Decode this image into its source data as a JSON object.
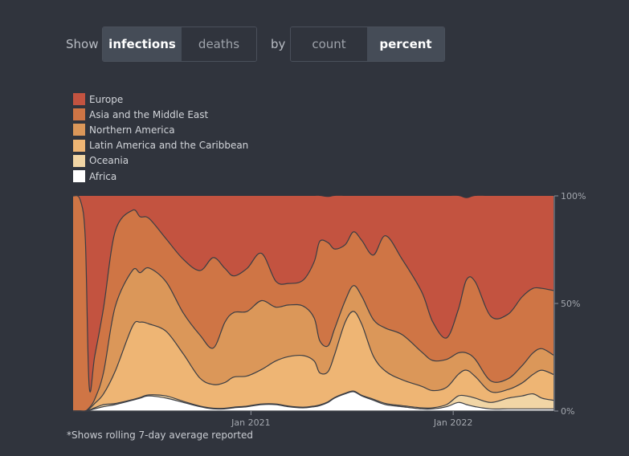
{
  "controls": {
    "show_label": "Show",
    "by_label": "by",
    "metric_options": [
      {
        "label": "infections",
        "active": true
      },
      {
        "label": "deaths",
        "active": false
      }
    ],
    "mode_options": [
      {
        "label": "count",
        "active": false
      },
      {
        "label": "percent",
        "active": true
      }
    ]
  },
  "footnote": "*Shows rolling 7-day average reported",
  "chart_data": {
    "type": "area",
    "stacked": true,
    "normalized": true,
    "x_range": [
      "2020-02-15",
      "2022-07-01"
    ],
    "ylim": [
      0,
      100
    ],
    "y_ticks": [
      "0%",
      "50%",
      "100%"
    ],
    "x_ticks": [
      "Jan 2021",
      "Jan 2022"
    ],
    "legend_position": "top-left",
    "x": [
      "2020-02-15",
      "2020-02-28",
      "2020-03-08",
      "2020-03-15",
      "2020-03-25",
      "2020-04-10",
      "2020-05-01",
      "2020-06-01",
      "2020-06-15",
      "2020-07-01",
      "2020-08-01",
      "2020-09-01",
      "2020-10-01",
      "2020-10-25",
      "2020-11-15",
      "2020-12-01",
      "2020-12-25",
      "2021-01-20",
      "2021-02-15",
      "2021-03-10",
      "2021-04-05",
      "2021-04-25",
      "2021-05-05",
      "2021-05-20",
      "2021-06-01",
      "2021-06-20",
      "2021-07-05",
      "2021-07-20",
      "2021-08-10",
      "2021-09-01",
      "2021-10-01",
      "2021-11-05",
      "2021-11-25",
      "2021-12-20",
      "2022-01-10",
      "2022-01-25",
      "2022-02-10",
      "2022-03-10",
      "2022-04-10",
      "2022-05-05",
      "2022-05-25",
      "2022-06-10",
      "2022-07-01"
    ],
    "series": [
      {
        "name": "Africa",
        "color": "#ffffff",
        "values": [
          0,
          0,
          0,
          0.3,
          1,
          2,
          3,
          5,
          6,
          7,
          6,
          4,
          2,
          1,
          1,
          1.5,
          2,
          3,
          3,
          2,
          1.5,
          2,
          2.5,
          4,
          6,
          8,
          9,
          7,
          5,
          3,
          2,
          1,
          1,
          2,
          4,
          3,
          2,
          1,
          1,
          1,
          1,
          1,
          1
        ]
      },
      {
        "name": "Oceania",
        "color": "#f1d5a5",
        "values": [
          0,
          0,
          0,
          0.2,
          0.5,
          1,
          0.5,
          0.3,
          0.3,
          0.5,
          1,
          0.5,
          0.3,
          0.3,
          0.3,
          0.3,
          0.3,
          0.3,
          0.3,
          0.3,
          0.3,
          0.3,
          0.3,
          0.3,
          0.3,
          0.3,
          0.3,
          0.3,
          0.5,
          0.5,
          0.5,
          0.5,
          0.5,
          1,
          3,
          4,
          4,
          3,
          5,
          6,
          7,
          5,
          4
        ]
      },
      {
        "name": "Latin America and the Caribbean",
        "color": "#eeb574",
        "values": [
          0,
          0,
          0,
          0.5,
          2,
          5,
          15,
          34,
          35,
          33,
          30,
          22,
          13,
          11,
          12,
          14,
          14,
          16,
          20,
          23,
          24,
          21,
          15,
          14,
          20,
          33,
          37,
          33,
          20,
          15,
          12,
          10,
          8,
          8,
          10,
          12,
          10,
          5,
          4,
          6,
          9,
          13,
          12
        ]
      },
      {
        "name": "Northern America",
        "color": "#db9759",
        "values": [
          0,
          0,
          0,
          0.5,
          2,
          10,
          30,
          26,
          23,
          26,
          23,
          19,
          20,
          17,
          28,
          30,
          30,
          32,
          25,
          24,
          23,
          20,
          15,
          12,
          12,
          10,
          12,
          13,
          17,
          20,
          21,
          16,
          14,
          13,
          10,
          8,
          8,
          5,
          5,
          8,
          10,
          10,
          9
        ]
      },
      {
        "name": "Asia and the Middle East",
        "color": "#cf7545",
        "values": [
          100,
          98,
          80,
          10,
          20,
          30,
          35,
          28,
          26,
          23,
          20,
          25,
          30,
          42,
          25,
          17,
          20,
          22,
          12,
          10,
          12,
          26,
          46,
          48,
          37,
          26,
          25,
          26,
          30,
          43,
          35,
          28,
          18,
          10,
          20,
          34,
          36,
          30,
          30,
          32,
          30,
          28,
          30
        ]
      },
      {
        "name": "Europe",
        "color": "#c35340",
        "values": [
          0,
          2,
          20,
          88.5,
          75,
          52,
          17,
          7,
          10,
          11,
          20,
          29.5,
          34.7,
          29.7,
          33.7,
          37.2,
          33.7,
          26.7,
          39.7,
          40.7,
          39.2,
          30.7,
          21.2,
          21.2,
          24.7,
          22.7,
          16.7,
          20.7,
          27.5,
          18.5,
          29.5,
          44.5,
          58.5,
          66,
          53,
          38,
          40,
          56,
          55,
          47,
          43,
          43,
          44
        ]
      }
    ]
  }
}
